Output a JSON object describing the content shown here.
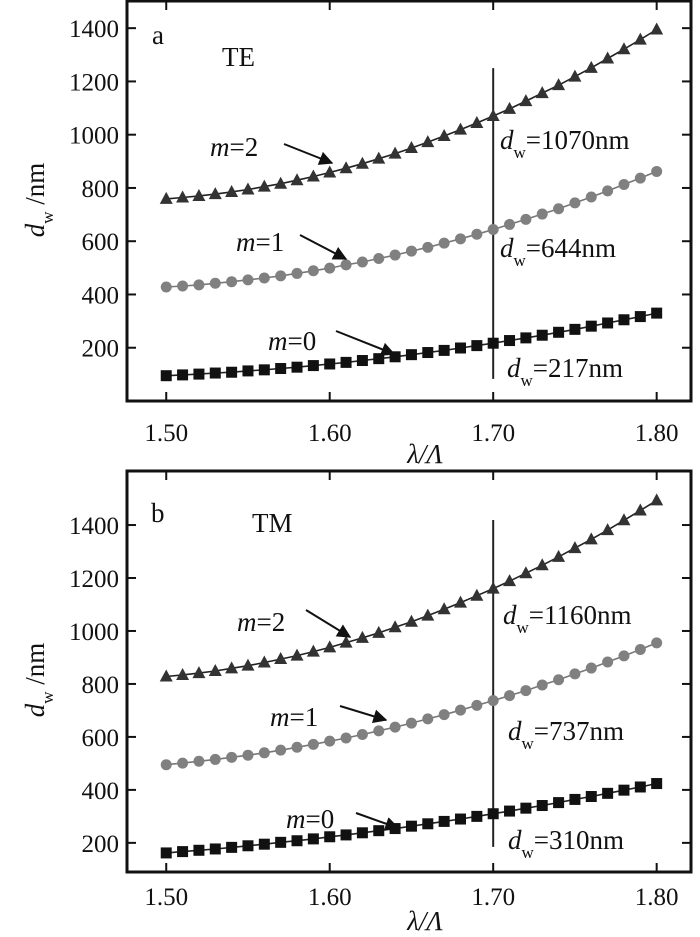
{
  "chart_data": [
    {
      "type": "line",
      "panel_letter": "a",
      "mode_label": "TE",
      "xlabel": "λ/Λ",
      "ylabel": {
        "var": "d",
        "sub": "w",
        "unit": " /nm"
      },
      "xlim": [
        1.476,
        1.821
      ],
      "ylim": [
        0,
        1502
      ],
      "xticks": [
        1.5,
        1.6,
        1.7,
        1.8
      ],
      "xtick_labels": [
        "1.50",
        "1.60",
        "1.70",
        "1.80"
      ],
      "yticks": [
        200,
        400,
        600,
        800,
        1000,
        1200,
        1400
      ],
      "ytick_labels": [
        "200",
        "400",
        "600",
        "800",
        "1000",
        "1200",
        "1400"
      ],
      "grid": false,
      "vline": {
        "x": 1.7,
        "from": 83,
        "to": 1250
      },
      "x": [
        1.5,
        1.51,
        1.52,
        1.53,
        1.54,
        1.55,
        1.56,
        1.57,
        1.58,
        1.59,
        1.6,
        1.61,
        1.62,
        1.63,
        1.64,
        1.65,
        1.66,
        1.67,
        1.68,
        1.69,
        1.7,
        1.71,
        1.72,
        1.73,
        1.74,
        1.75,
        1.76,
        1.77,
        1.78,
        1.79,
        1.8
      ],
      "series": [
        {
          "name": "m=0",
          "label_var": "m",
          "label_val": "=0",
          "marker": "square",
          "color": "#111111",
          "values": [
            95,
            98,
            101,
            105,
            108,
            113,
            117,
            122,
            127,
            133,
            139,
            145,
            152,
            159,
            166,
            174,
            182,
            190,
            199,
            208,
            217,
            227,
            237,
            247,
            258,
            269,
            281,
            293,
            305,
            317,
            330
          ],
          "annotation": {
            "var": "d",
            "sub": "w",
            "text": "=217nm"
          }
        },
        {
          "name": "m=1",
          "label_var": "m",
          "label_val": "=1",
          "marker": "circle",
          "color": "#808080",
          "values": [
            428,
            432,
            436,
            442,
            448,
            455,
            462,
            470,
            479,
            489,
            499,
            511,
            522,
            535,
            548,
            563,
            577,
            593,
            609,
            626,
            644,
            663,
            682,
            702,
            722,
            744,
            766,
            789,
            813,
            837,
            862
          ],
          "annotation": {
            "var": "d",
            "sub": "w",
            "text": "=644nm"
          }
        },
        {
          "name": "m=2",
          "label_var": "m",
          "label_val": "=2",
          "marker": "triangle",
          "color": "#333333",
          "values": [
            759,
            764,
            770,
            777,
            785,
            794,
            805,
            816,
            829,
            843,
            858,
            874,
            891,
            910,
            929,
            950,
            972,
            995,
            1019,
            1044,
            1070,
            1097,
            1126,
            1156,
            1186,
            1218,
            1251,
            1286,
            1321,
            1357,
            1395
          ],
          "annotation": {
            "var": "d",
            "sub": "w",
            "text": "=1070nm"
          }
        }
      ]
    },
    {
      "type": "line",
      "panel_letter": "b",
      "mode_label": "TM",
      "xlabel": "λ/Λ",
      "ylabel": {
        "var": "d",
        "sub": "w",
        "unit": " /nm"
      },
      "xlim": [
        1.476,
        1.821
      ],
      "ylim": [
        90,
        1604
      ],
      "xticks": [
        1.5,
        1.6,
        1.7,
        1.8
      ],
      "xtick_labels": [
        "1.50",
        "1.60",
        "1.70",
        "1.80"
      ],
      "yticks": [
        200,
        400,
        600,
        800,
        1000,
        1200,
        1400
      ],
      "ytick_labels": [
        "200",
        "400",
        "600",
        "800",
        "1000",
        "1200",
        "1400"
      ],
      "grid": false,
      "vline": {
        "x": 1.7,
        "from": 185,
        "to": 1419
      },
      "x": [
        1.5,
        1.51,
        1.52,
        1.53,
        1.54,
        1.55,
        1.56,
        1.57,
        1.58,
        1.59,
        1.6,
        1.61,
        1.62,
        1.63,
        1.64,
        1.65,
        1.66,
        1.67,
        1.68,
        1.69,
        1.7,
        1.71,
        1.72,
        1.73,
        1.74,
        1.75,
        1.76,
        1.77,
        1.78,
        1.79,
        1.8
      ],
      "series": [
        {
          "name": "m=0",
          "label_var": "m",
          "label_val": "=0",
          "marker": "square",
          "color": "#111111",
          "values": [
            162,
            167,
            172,
            177,
            183,
            189,
            195,
            202,
            208,
            215,
            223,
            230,
            238,
            246,
            254,
            263,
            272,
            281,
            290,
            300,
            310,
            320,
            331,
            341,
            352,
            364,
            375,
            387,
            399,
            411,
            424
          ],
          "annotation": {
            "var": "d",
            "sub": "w",
            "text": "=310nm"
          }
        },
        {
          "name": "m=1",
          "label_var": "m",
          "label_val": "=1",
          "marker": "circle",
          "color": "#808080",
          "values": [
            495,
            501,
            508,
            515,
            523,
            531,
            540,
            550,
            561,
            572,
            584,
            596,
            609,
            623,
            637,
            652,
            668,
            684,
            701,
            719,
            737,
            756,
            775,
            796,
            816,
            838,
            860,
            883,
            906,
            930,
            955
          ],
          "annotation": {
            "var": "d",
            "sub": "w",
            "text": "=737nm"
          }
        },
        {
          "name": "m=2",
          "label_var": "m",
          "label_val": "=2",
          "marker": "triangle",
          "color": "#333333",
          "values": [
            828,
            834,
            841,
            849,
            859,
            869,
            881,
            894,
            907,
            922,
            938,
            956,
            974,
            993,
            1014,
            1035,
            1058,
            1082,
            1107,
            1133,
            1160,
            1188,
            1218,
            1248,
            1280,
            1313,
            1346,
            1381,
            1418,
            1455,
            1493
          ],
          "annotation": {
            "var": "d",
            "sub": "w",
            "text": "=1160nm"
          }
        }
      ]
    }
  ]
}
